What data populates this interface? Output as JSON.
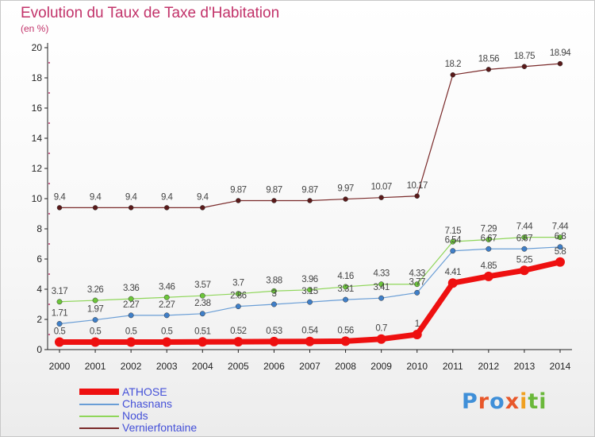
{
  "title": "Evolution du Taux de Taxe d'Habitation",
  "unit": "(en %)",
  "logo": {
    "text": "Proxiti"
  },
  "chart_data": {
    "type": "line",
    "x": [
      "2000",
      "2001",
      "2002",
      "2003",
      "2004",
      "2005",
      "2006",
      "2007",
      "2008",
      "2009",
      "2010",
      "2011",
      "2012",
      "2013",
      "2014"
    ],
    "yticks": [
      "0",
      "2",
      "4",
      "6",
      "8",
      "10",
      "12",
      "14",
      "16",
      "18",
      "20"
    ],
    "ylim": [
      0,
      20
    ],
    "grid": false,
    "legend": "bottom-left",
    "series": [
      {
        "name": "Vernierfontaine",
        "color": "#7a2a2a",
        "marker": "#5a1a1a",
        "width": 1.2,
        "r": 3,
        "values": [
          9.4,
          9.4,
          9.4,
          9.4,
          9.4,
          9.87,
          9.87,
          9.87,
          9.97,
          10.07,
          10.17,
          18.2,
          18.56,
          18.75,
          18.94
        ],
        "labels": [
          "9.4",
          "9.4",
          "9.4",
          "9.4",
          "9.4",
          "9.87",
          "9.87",
          "9.87",
          "9.97",
          "10.07",
          "10.17",
          "18.2",
          "18.56",
          "18.75",
          "18.94"
        ]
      },
      {
        "name": "Nods",
        "color": "#8fd65a",
        "marker": "#6cc63a",
        "width": 1.2,
        "r": 3.2,
        "values": [
          3.17,
          3.26,
          3.36,
          3.46,
          3.57,
          3.7,
          3.88,
          3.96,
          4.16,
          4.33,
          4.33,
          7.15,
          7.29,
          7.44,
          7.44
        ],
        "labels": [
          "3.17",
          "3.26",
          "3.36",
          "3.46",
          "3.57",
          "3.7",
          "3.88",
          "3.96",
          "4.16",
          "4.33",
          "4.33",
          "7.15",
          "7.29",
          "7.44",
          "7.44"
        ]
      },
      {
        "name": "Chasnans",
        "color": "#6a9ed6",
        "marker": "#3f7fc8",
        "width": 1.2,
        "r": 3.2,
        "values": [
          1.71,
          1.97,
          2.27,
          2.27,
          2.38,
          2.86,
          3,
          3.15,
          3.31,
          3.41,
          3.77,
          6.54,
          6.67,
          6.67,
          6.8
        ],
        "labels": [
          "1.71",
          "1.97",
          "2.27",
          "2.27",
          "2.38",
          "2.86",
          "3",
          "3.15",
          "3.31",
          "3.41",
          "3.77",
          "6.54",
          "6.67",
          "6.67",
          "6.8"
        ]
      },
      {
        "name": "ATHOSE",
        "color": "#ee1010",
        "marker": "#ee1010",
        "width": 7,
        "r": 6,
        "values": [
          0.5,
          0.5,
          0.5,
          0.5,
          0.51,
          0.52,
          0.53,
          0.54,
          0.56,
          0.7,
          1,
          4.41,
          4.85,
          5.25,
          5.8
        ],
        "labels": [
          "0.5",
          "0.5",
          "0.5",
          "0.5",
          "0.51",
          "0.52",
          "0.53",
          "0.54",
          "0.56",
          "0.7",
          "1",
          "4.41",
          "4.85",
          "5.25",
          "5.8"
        ]
      }
    ],
    "legend_order": [
      "ATHOSE",
      "Chasnans",
      "Nods",
      "Vernierfontaine"
    ]
  }
}
